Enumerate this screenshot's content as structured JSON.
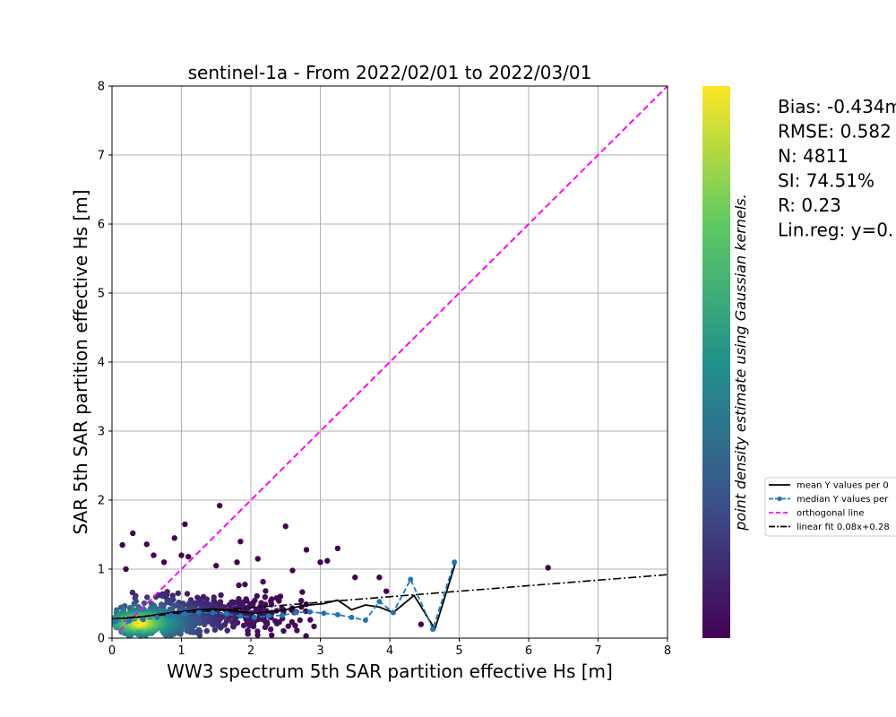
{
  "chart_data": {
    "type": "scatter",
    "title": "sentinel-1a - From 2022/02/01 to 2022/03/01",
    "xlabel": "WW3 spectrum 5th SAR partition effective Hs [m]",
    "ylabel": "SAR 5th SAR partition effective Hs [m]",
    "xlim": [
      0,
      8
    ],
    "ylim": [
      0,
      8
    ],
    "x_ticks": [
      "0",
      "1",
      "2",
      "3",
      "4",
      "5",
      "6",
      "7",
      "8"
    ],
    "y_ticks": [
      "0",
      "1",
      "2",
      "3",
      "4",
      "5",
      "6",
      "7",
      "8"
    ],
    "grid": true,
    "colormap": [
      "#440154",
      "#3b528b",
      "#21918c",
      "#5ec962",
      "#fde725"
    ],
    "colorbar_label": "point density estimate using Gaussian kernels.",
    "stats": [
      "Bias: -0.434m",
      "RMSE: 0.582",
      "N: 4811",
      "SI: 74.51%",
      "R: 0.23",
      "Lin.reg: y=0."
    ],
    "legend_placement": "right, outside plot",
    "legend": [
      {
        "label": "mean Y values per 0",
        "style": "solid",
        "color": "#000000"
      },
      {
        "label": "median Y values per",
        "style": "dashed-marker",
        "color": "#1f77b4"
      },
      {
        "label": "orthogonal line",
        "style": "dashed",
        "color": "#ff00ff"
      },
      {
        "label": "linear fit 0.08x+0.28",
        "style": "dashdot",
        "color": "#000000"
      }
    ],
    "series": [
      {
        "label": "mean Y values per 0",
        "x": [
          0.05,
          0.25,
          0.45,
          0.65,
          0.85,
          1.05,
          1.25,
          1.45,
          1.65,
          1.85,
          2.05,
          2.25,
          2.45,
          2.65,
          2.85,
          3.05,
          3.25,
          3.45,
          3.65,
          3.85,
          4.05,
          4.35,
          4.65,
          4.95
        ],
        "y": [
          0.28,
          0.29,
          0.31,
          0.34,
          0.37,
          0.39,
          0.41,
          0.42,
          0.41,
          0.38,
          0.36,
          0.38,
          0.4,
          0.45,
          0.48,
          0.5,
          0.55,
          0.41,
          0.48,
          0.45,
          0.37,
          0.62,
          0.13,
          1.1
        ],
        "color": "#000000"
      },
      {
        "label": "median Y values per",
        "x": [
          0.05,
          0.25,
          0.45,
          0.65,
          0.85,
          1.05,
          1.25,
          1.45,
          1.65,
          1.85,
          2.05,
          2.25,
          2.45,
          2.65,
          2.85,
          3.05,
          3.25,
          3.45,
          3.65,
          3.85,
          4.05,
          4.3,
          4.62,
          4.93
        ],
        "y": [
          0.24,
          0.25,
          0.27,
          0.3,
          0.33,
          0.35,
          0.37,
          0.37,
          0.35,
          0.32,
          0.3,
          0.32,
          0.33,
          0.37,
          0.38,
          0.36,
          0.34,
          0.3,
          0.26,
          0.53,
          0.37,
          0.85,
          0.13,
          1.1
        ],
        "color": "#1f77b4"
      },
      {
        "label": "orthogonal line",
        "x": [
          0.1,
          8
        ],
        "y": [
          0.1,
          8
        ],
        "color": "#ff00ff"
      },
      {
        "label": "linear fit 0.08x+0.28",
        "slope": 0.08,
        "intercept": 0.28,
        "x": [
          0,
          8
        ],
        "color": "#000000"
      }
    ],
    "outliers": {
      "x": [
        0.3,
        0.5,
        1.0,
        1.05,
        1.55,
        0.9,
        1.85,
        2.5,
        2.8,
        3.1,
        3.5,
        3.95,
        4.45,
        6.28,
        1.5,
        1.8,
        0.6,
        0.15,
        0.75,
        2.6,
        3.25,
        3.85,
        1.1,
        0.2,
        2.1,
        3.0
      ],
      "y": [
        1.52,
        1.36,
        1.2,
        1.65,
        1.92,
        1.45,
        1.4,
        1.62,
        1.28,
        1.12,
        0.88,
        0.68,
        0.2,
        1.02,
        1.05,
        1.1,
        1.2,
        1.35,
        1.1,
        0.98,
        1.3,
        0.88,
        1.18,
        1.0,
        1.15,
        1.1
      ]
    },
    "density_cloud_points": 4811
  }
}
